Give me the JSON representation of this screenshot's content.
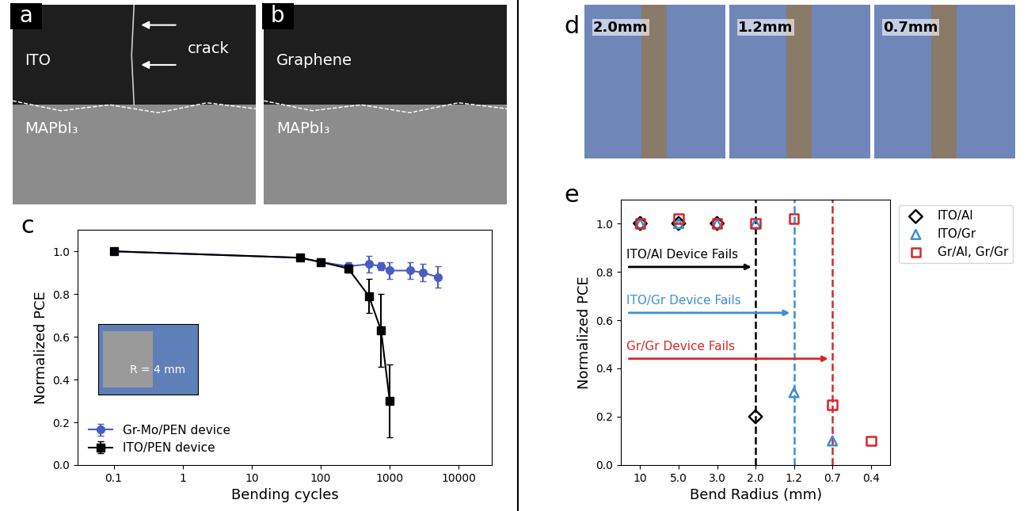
{
  "chart_data": [
    {
      "type": "line",
      "panel": "c",
      "x_label": "Bending cycles",
      "y_label": "Normalized PCE",
      "log": "x",
      "xlim": [
        0.03,
        30000
      ],
      "xticks": [
        0.1,
        1,
        10,
        100,
        1000,
        10000
      ],
      "ylim": [
        0.0,
        1.1
      ],
      "yticks": [
        0.0,
        0.2,
        0.4,
        0.6,
        0.8,
        1.0
      ],
      "legend": "lower left",
      "annotations": [
        "R = 4 mm"
      ],
      "series": [
        {
          "name": "Gr-Mo/PEN device",
          "color": "#4a5cc4",
          "marker": "circle",
          "x": [
            0.1,
            50,
            100,
            250,
            500,
            750,
            1000,
            2000,
            3000,
            5000
          ],
          "values": [
            1.0,
            0.97,
            0.95,
            0.93,
            0.94,
            0.93,
            0.91,
            0.91,
            0.9,
            0.88
          ],
          "error": [
            0.0,
            0.01,
            0.01,
            0.02,
            0.04,
            0.02,
            0.04,
            0.04,
            0.04,
            0.05
          ]
        },
        {
          "name": "ITO/PEN device",
          "color": "#000000",
          "marker": "square",
          "x": [
            0.1,
            50,
            100,
            250,
            500,
            750,
            1000
          ],
          "values": [
            1.0,
            0.97,
            0.95,
            0.92,
            0.79,
            0.63,
            0.3
          ],
          "error": [
            0.0,
            0.01,
            0.01,
            0.02,
            0.08,
            0.17,
            0.17
          ]
        }
      ]
    },
    {
      "type": "scatter",
      "panel": "e",
      "x_label": "Bend Radius (mm)",
      "y_label": "Normalized PCE",
      "categories": [
        "10",
        "5.0",
        "3.0",
        "2.0",
        "1.2",
        "0.7",
        "0.4"
      ],
      "ylim": [
        0.0,
        1.1
      ],
      "yticks": [
        0.0,
        0.2,
        0.4,
        0.6,
        0.8,
        1.0
      ],
      "legend": "upper right",
      "series": [
        {
          "name": "ITO/Al",
          "color": "#000000",
          "marker": "diamond",
          "values": [
            1.0,
            1.0,
            1.0,
            0.2,
            null,
            null,
            null
          ]
        },
        {
          "name": "ITO/Gr",
          "color": "#3b8fd6",
          "marker": "triangle",
          "values": [
            1.0,
            1.0,
            1.0,
            1.0,
            0.3,
            0.1,
            null
          ]
        },
        {
          "name": "Gr/Al, Gr/Gr",
          "color": "#d62728",
          "marker": "square",
          "values": [
            1.0,
            1.02,
            1.0,
            1.0,
            1.02,
            0.25,
            0.1
          ]
        }
      ],
      "annotations": [
        {
          "text": "ITO/Al Device Fails",
          "x": "2.0",
          "color": "#000000"
        },
        {
          "text": "ITO/Gr Device Fails",
          "x": "1.2",
          "color": "#3b8fd6"
        },
        {
          "text": "Gr/Gr Device Fails",
          "x": "0.7",
          "color": "#d62728"
        }
      ]
    }
  ],
  "images": [
    {
      "panel": "a",
      "top": "ITO",
      "bottom": "MAPbI₃",
      "arrow_label": "crack"
    },
    {
      "panel": "b",
      "top": "Graphene",
      "bottom": "MAPbI₃"
    },
    {
      "panel": "d",
      "radii": [
        "2.0mm",
        "1.2mm",
        "0.7mm"
      ]
    }
  ]
}
